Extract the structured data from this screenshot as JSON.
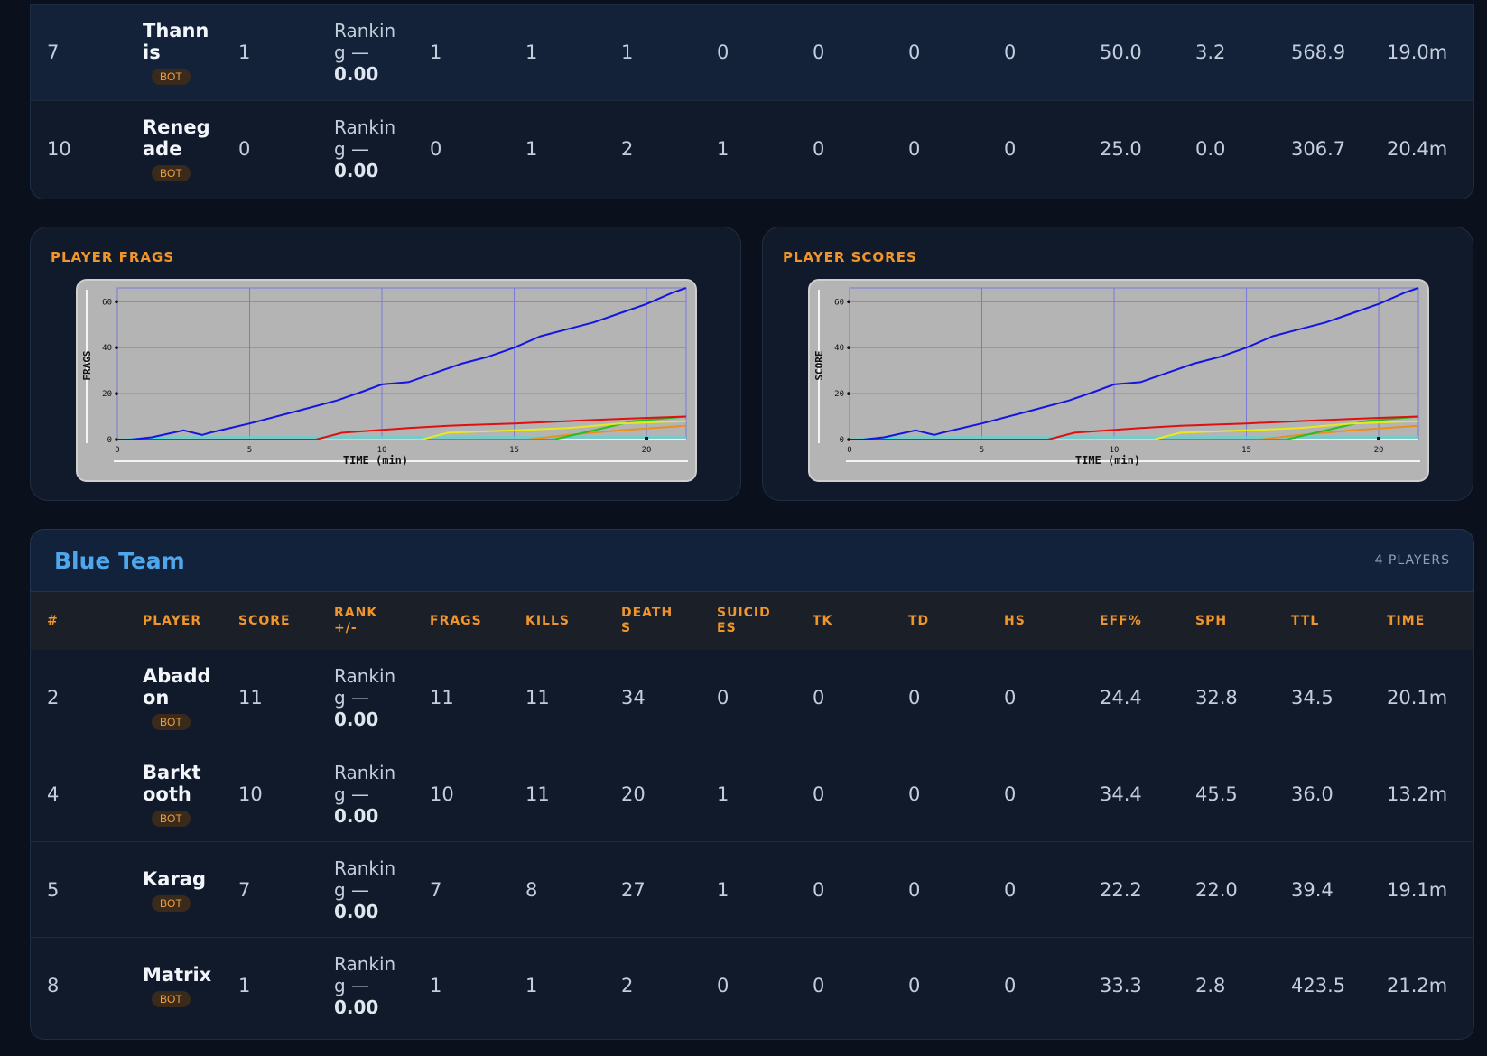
{
  "top_table": {
    "rows": [
      {
        "rank": "7",
        "player": "Thannis",
        "badge": "BOT",
        "score": "1",
        "rank_label": "Ranking —",
        "rank_value": "0.00",
        "frags": "1",
        "kills": "1",
        "deaths": "1",
        "suicides": "0",
        "tk": "0",
        "td": "0",
        "hs": "0",
        "eff": "50.0",
        "sph": "3.2",
        "ttl": "568.9",
        "time": "19.0m"
      },
      {
        "rank": "10",
        "player": "Renegade",
        "badge": "BOT",
        "score": "0",
        "rank_label": "Ranking —",
        "rank_value": "0.00",
        "frags": "0",
        "kills": "1",
        "deaths": "2",
        "suicides": "1",
        "tk": "0",
        "td": "0",
        "hs": "0",
        "eff": "25.0",
        "sph": "0.0",
        "ttl": "306.7",
        "time": "20.4m"
      }
    ]
  },
  "charts": {
    "frags_title": "PLAYER FRAGS",
    "scores_title": "PLAYER SCORES",
    "frags_ylabel": "FRAGS",
    "scores_ylabel": "SCORE",
    "xlabel": "TIME (min)",
    "xticks": [
      "0",
      "5",
      "10",
      "15",
      "20"
    ],
    "yticks": [
      "0",
      "20",
      "40",
      "60"
    ]
  },
  "chart_data": [
    {
      "type": "line",
      "title": "",
      "xlabel": "TIME (min)",
      "ylabel": "FRAGS",
      "xlim": [
        0,
        21.5
      ],
      "ylim": [
        0,
        66
      ],
      "grid": true,
      "series": [
        {
          "color": "#1515e0",
          "x": [
            0,
            0.5,
            1.3,
            2.5,
            3.2,
            3.5,
            5,
            7,
            8.3,
            9.3,
            10,
            11,
            12,
            13,
            14,
            15,
            16,
            17,
            18,
            19,
            20,
            21,
            21.5
          ],
          "values": [
            0,
            0,
            1,
            4,
            2,
            3,
            7,
            13,
            17,
            21,
            24,
            25,
            29,
            33,
            36,
            40,
            45,
            48,
            51,
            55,
            59,
            64,
            66
          ]
        },
        {
          "color": "#e01010",
          "x": [
            0,
            7.5,
            8.5,
            11,
            12.5,
            15,
            17,
            19,
            21.5
          ],
          "values": [
            0,
            0,
            3,
            5,
            6,
            7,
            8,
            9,
            10
          ]
        },
        {
          "color": "#e8e820",
          "x": [
            0,
            11.5,
            12.5,
            15,
            17,
            19,
            21.5
          ],
          "values": [
            0,
            0,
            3,
            4,
            5,
            7,
            8
          ]
        },
        {
          "color": "#20c020",
          "x": [
            0,
            16.5,
            18,
            19.5,
            21.5
          ],
          "values": [
            0,
            0,
            4,
            8,
            10
          ]
        },
        {
          "color": "#e89020",
          "x": [
            0,
            15.5,
            17,
            19,
            21.5
          ],
          "values": [
            0,
            0,
            2,
            4,
            6
          ]
        },
        {
          "color": "#40e0e0",
          "x": [
            0,
            2,
            21.5
          ],
          "values": [
            0,
            1,
            1
          ]
        },
        {
          "color": "#f0f0f0",
          "x": [
            0,
            2.5,
            21.5
          ],
          "values": [
            0,
            0,
            0
          ]
        }
      ]
    },
    {
      "type": "line",
      "title": "",
      "xlabel": "TIME (min)",
      "ylabel": "SCORE",
      "xlim": [
        0,
        21.5
      ],
      "ylim": [
        0,
        66
      ],
      "grid": true,
      "series": [
        {
          "color": "#1515e0",
          "x": [
            0,
            0.5,
            1.3,
            2.5,
            3.2,
            3.5,
            5,
            7,
            8.3,
            9.3,
            10,
            11,
            12,
            13,
            14,
            15,
            16,
            17,
            18,
            19,
            20,
            21,
            21.5
          ],
          "values": [
            0,
            0,
            1,
            4,
            2,
            3,
            7,
            13,
            17,
            21,
            24,
            25,
            29,
            33,
            36,
            40,
            45,
            48,
            51,
            55,
            59,
            64,
            66
          ]
        },
        {
          "color": "#e01010",
          "x": [
            0,
            7.5,
            8.5,
            11,
            12.5,
            15,
            17,
            19,
            21.5
          ],
          "values": [
            0,
            0,
            3,
            5,
            6,
            7,
            8,
            9,
            10
          ]
        },
        {
          "color": "#e8e820",
          "x": [
            0,
            11.5,
            12.5,
            15,
            17,
            19,
            21.5
          ],
          "values": [
            0,
            0,
            3,
            4,
            5,
            7,
            8
          ]
        },
        {
          "color": "#20c020",
          "x": [
            0,
            16.5,
            18,
            19.5,
            21.5
          ],
          "values": [
            0,
            0,
            4,
            8,
            10
          ]
        },
        {
          "color": "#e89020",
          "x": [
            0,
            15.5,
            17,
            19,
            21.5
          ],
          "values": [
            0,
            0,
            2,
            4,
            6
          ]
        },
        {
          "color": "#40e0e0",
          "x": [
            0,
            2,
            21.5
          ],
          "values": [
            0,
            1,
            1
          ]
        },
        {
          "color": "#f0f0f0",
          "x": [
            0,
            2.5,
            21.5
          ],
          "values": [
            0,
            0,
            0
          ]
        }
      ]
    }
  ],
  "blue_team": {
    "name": "Blue Team",
    "count": "4 PLAYERS",
    "headers": [
      "#",
      "PLAYER",
      "SCORE",
      "RANK +/-",
      "FRAGS",
      "KILLS",
      "DEATHS",
      "SUICIDES",
      "TK",
      "TD",
      "HS",
      "EFF%",
      "SPH",
      "TTL",
      "TIME"
    ],
    "rows": [
      {
        "rank": "2",
        "player": "Abaddon",
        "badge": "BOT",
        "score": "11",
        "rank_label": "Ranking —",
        "rank_value": "0.00",
        "frags": "11",
        "kills": "11",
        "deaths": "34",
        "suicides": "0",
        "tk": "0",
        "td": "0",
        "hs": "0",
        "eff": "24.4",
        "sph": "32.8",
        "ttl": "34.5",
        "time": "20.1m"
      },
      {
        "rank": "4",
        "player": "Barktooth",
        "badge": "BOT",
        "score": "10",
        "rank_label": "Ranking —",
        "rank_value": "0.00",
        "frags": "10",
        "kills": "11",
        "deaths": "20",
        "suicides": "1",
        "tk": "0",
        "td": "0",
        "hs": "0",
        "eff": "34.4",
        "sph": "45.5",
        "ttl": "36.0",
        "time": "13.2m"
      },
      {
        "rank": "5",
        "player": "Karag",
        "badge": "BOT",
        "score": "7",
        "rank_label": "Ranking —",
        "rank_value": "0.00",
        "frags": "7",
        "kills": "8",
        "deaths": "27",
        "suicides": "1",
        "tk": "0",
        "td": "0",
        "hs": "0",
        "eff": "22.2",
        "sph": "22.0",
        "ttl": "39.4",
        "time": "19.1m"
      },
      {
        "rank": "8",
        "player": "Matrix",
        "badge": "BOT",
        "score": "1",
        "rank_label": "Ranking —",
        "rank_value": "0.00",
        "frags": "1",
        "kills": "1",
        "deaths": "2",
        "suicides": "0",
        "tk": "0",
        "td": "0",
        "hs": "0",
        "eff": "33.3",
        "sph": "2.8",
        "ttl": "423.5",
        "time": "21.2m"
      }
    ]
  }
}
